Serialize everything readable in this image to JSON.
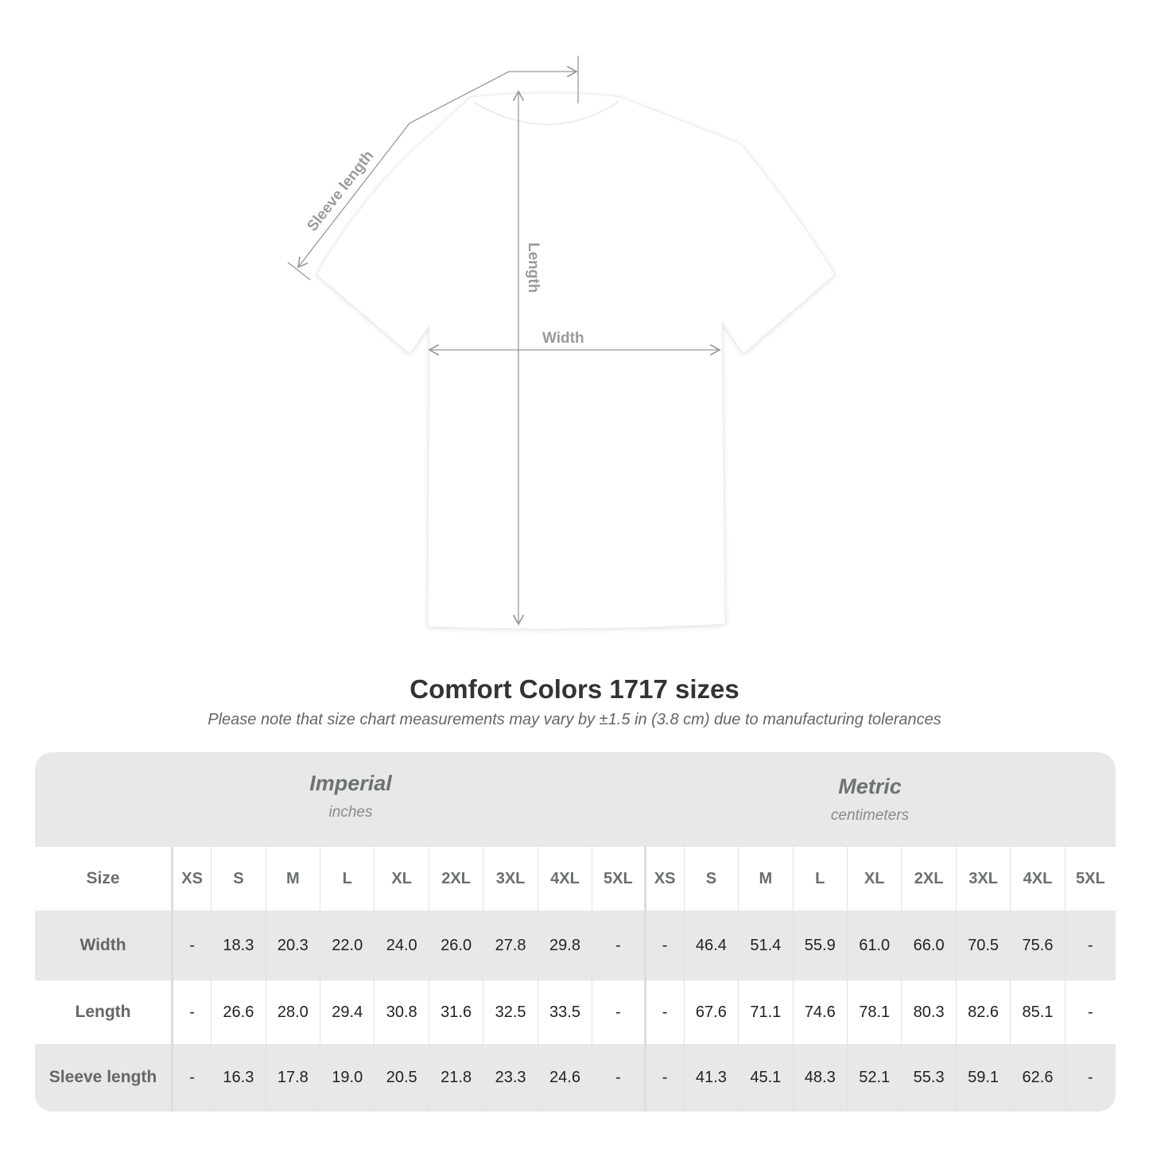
{
  "diagram": {
    "labels": {
      "sleeve": "Sleeve length",
      "length": "Length",
      "width": "Width"
    },
    "shirt_color": "#ffffff",
    "line_color": "#999999"
  },
  "title": "Comfort Colors 1717 sizes",
  "subtitle": "Please note that size chart measurements may vary by ±1.5 in (3.8 cm) due to manufacturing tolerances",
  "table": {
    "groups": [
      {
        "name": "Imperial",
        "unit": "inches"
      },
      {
        "name": "Metric",
        "unit": "centimeters"
      }
    ],
    "size_header": "Size",
    "sizes": [
      "XS",
      "S",
      "M",
      "L",
      "XL",
      "2XL",
      "3XL",
      "4XL",
      "5XL"
    ],
    "rows": [
      {
        "label": "Width",
        "imperial": [
          "-",
          "18.3",
          "20.3",
          "22.0",
          "24.0",
          "26.0",
          "27.8",
          "29.8",
          "-"
        ],
        "metric": [
          "-",
          "46.4",
          "51.4",
          "55.9",
          "61.0",
          "66.0",
          "70.5",
          "75.6",
          "-"
        ]
      },
      {
        "label": "Length",
        "imperial": [
          "-",
          "26.6",
          "28.0",
          "29.4",
          "30.8",
          "31.6",
          "32.5",
          "33.5",
          "-"
        ],
        "metric": [
          "-",
          "67.6",
          "71.1",
          "74.6",
          "78.1",
          "80.3",
          "82.6",
          "85.1",
          "-"
        ]
      },
      {
        "label": "Sleeve length",
        "imperial": [
          "-",
          "16.3",
          "17.8",
          "19.0",
          "20.5",
          "21.8",
          "23.3",
          "24.6",
          "-"
        ],
        "metric": [
          "-",
          "41.3",
          "45.1",
          "48.3",
          "52.1",
          "55.3",
          "59.1",
          "62.6",
          "-"
        ]
      }
    ],
    "colors": {
      "header_bg": "#e8e8e8",
      "label_text": "#666666",
      "group_text": "#6f7272"
    }
  }
}
